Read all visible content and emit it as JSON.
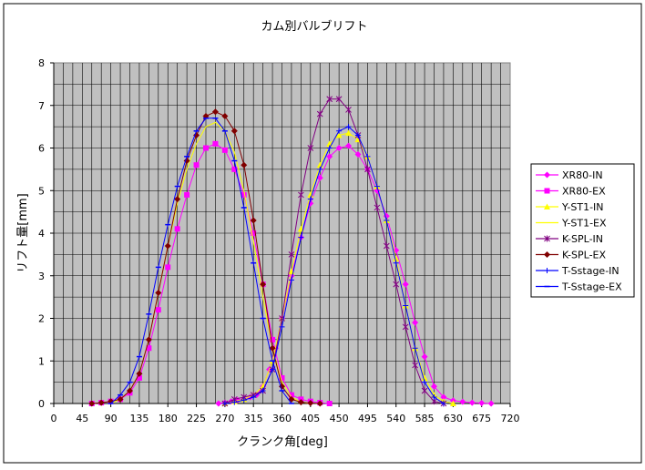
{
  "chart_data": {
    "type": "line",
    "title": "カム別バルブリフト",
    "xlabel": "クランク角[deg]",
    "ylabel": "リフト量[mm]",
    "xlim": [
      0,
      720
    ],
    "ylim": [
      0,
      8
    ],
    "x_ticks": [
      "0",
      "45",
      "90",
      "135",
      "180",
      "225",
      "270",
      "315",
      "360",
      "405",
      "450",
      "495",
      "540",
      "585",
      "630",
      "675",
      "720"
    ],
    "y_ticks": [
      "0",
      "1",
      "2",
      "3",
      "4",
      "5",
      "6",
      "7",
      "8"
    ],
    "grid": true,
    "legend_position": "right",
    "plot_background": "#c0c0c0",
    "series": [
      {
        "name": "XR80-IN",
        "color": "#ff00ff",
        "marker": "diamond",
        "x": [
          260,
          270,
          280,
          290,
          300,
          310,
          320,
          330,
          340,
          350,
          360,
          375,
          390,
          405,
          420,
          435,
          450,
          465,
          480,
          495,
          510,
          525,
          540,
          555,
          570,
          585,
          600,
          615,
          630,
          645,
          660,
          675,
          690
        ],
        "y": [
          0.0,
          0.02,
          0.05,
          0.08,
          0.1,
          0.15,
          0.2,
          0.4,
          0.8,
          1.3,
          2.0,
          3.0,
          3.9,
          4.7,
          5.3,
          5.8,
          6.0,
          6.05,
          5.85,
          5.5,
          5.0,
          4.4,
          3.6,
          2.8,
          1.9,
          1.1,
          0.4,
          0.15,
          0.07,
          0.04,
          0.02,
          0.01,
          0.0
        ]
      },
      {
        "name": "XR80-EX",
        "color": "#ff00ff",
        "marker": "square",
        "x": [
          60,
          75,
          90,
          105,
          120,
          135,
          150,
          165,
          180,
          195,
          210,
          225,
          240,
          255,
          270,
          285,
          300,
          315,
          330,
          345,
          360,
          375,
          390,
          405,
          420,
          435
        ],
        "y": [
          0.0,
          0.02,
          0.05,
          0.1,
          0.25,
          0.6,
          1.3,
          2.2,
          3.2,
          4.1,
          4.9,
          5.6,
          6.0,
          6.1,
          5.95,
          5.5,
          4.9,
          4.0,
          2.8,
          1.5,
          0.6,
          0.2,
          0.1,
          0.05,
          0.02,
          0.0
        ]
      },
      {
        "name": "Y-ST1-IN",
        "color": "#ffff00",
        "marker": "triangle",
        "x": [
          270,
          285,
          300,
          315,
          330,
          345,
          360,
          375,
          390,
          405,
          420,
          435,
          450,
          465,
          480,
          495,
          510,
          525,
          540,
          555,
          570,
          585,
          600,
          615,
          630
        ],
        "y": [
          0.0,
          0.05,
          0.1,
          0.2,
          0.4,
          1.0,
          2.0,
          3.1,
          4.1,
          4.9,
          5.6,
          6.1,
          6.3,
          6.35,
          6.2,
          5.8,
          5.1,
          4.3,
          3.4,
          2.3,
          1.3,
          0.6,
          0.2,
          0.05,
          0.0
        ]
      },
      {
        "name": "Y-ST1-EX",
        "color": "#ffff00",
        "marker": "none",
        "x": [
          90,
          105,
          120,
          135,
          150,
          165,
          180,
          195,
          210,
          225,
          240,
          255,
          270,
          285,
          300,
          315,
          330,
          345,
          360,
          375,
          390,
          405
        ],
        "y": [
          0.0,
          0.1,
          0.3,
          0.7,
          1.5,
          2.6,
          3.7,
          4.7,
          5.5,
          6.1,
          6.5,
          6.6,
          6.4,
          5.9,
          5.0,
          3.8,
          2.5,
          1.3,
          0.5,
          0.15,
          0.03,
          0.0
        ]
      },
      {
        "name": "K-SPL-IN",
        "color": "#800080",
        "marker": "star",
        "x": [
          270,
          285,
          300,
          315,
          330,
          345,
          360,
          375,
          390,
          405,
          420,
          435,
          450,
          465,
          480,
          495,
          510,
          525,
          540,
          555,
          570,
          585,
          600,
          615
        ],
        "y": [
          0.0,
          0.1,
          0.15,
          0.2,
          0.3,
          0.8,
          2.0,
          3.5,
          4.9,
          6.0,
          6.8,
          7.15,
          7.15,
          6.9,
          6.3,
          5.5,
          4.6,
          3.7,
          2.8,
          1.8,
          0.9,
          0.3,
          0.05,
          0.0
        ]
      },
      {
        "name": "K-SPL-EX",
        "color": "#800000",
        "marker": "diamond",
        "x": [
          60,
          75,
          90,
          105,
          120,
          135,
          150,
          165,
          180,
          195,
          210,
          225,
          240,
          255,
          270,
          285,
          300,
          315,
          330,
          345,
          360,
          375,
          390,
          405,
          420
        ],
        "y": [
          0.0,
          0.02,
          0.05,
          0.1,
          0.3,
          0.7,
          1.5,
          2.6,
          3.7,
          4.8,
          5.7,
          6.3,
          6.75,
          6.85,
          6.75,
          6.4,
          5.6,
          4.3,
          2.8,
          1.3,
          0.4,
          0.1,
          0.03,
          0.01,
          0.0
        ]
      },
      {
        "name": "T-Sstage-IN",
        "color": "#0000ff",
        "marker": "plus",
        "x": [
          270,
          285,
          300,
          315,
          330,
          345,
          360,
          375,
          390,
          405,
          420,
          435,
          450,
          465,
          480,
          495,
          510,
          525,
          540,
          555,
          570,
          585,
          600,
          615
        ],
        "y": [
          0.0,
          0.03,
          0.08,
          0.15,
          0.3,
          0.8,
          1.8,
          2.9,
          3.9,
          4.8,
          5.5,
          6.0,
          6.4,
          6.5,
          6.3,
          5.8,
          5.1,
          4.3,
          3.3,
          2.3,
          1.3,
          0.5,
          0.15,
          0.0
        ]
      },
      {
        "name": "T-Sstage-EX",
        "color": "#0000ff",
        "marker": "dash",
        "x": [
          90,
          105,
          120,
          135,
          150,
          165,
          180,
          195,
          210,
          225,
          240,
          255,
          270,
          285,
          300,
          315,
          330,
          345,
          360,
          375
        ],
        "y": [
          0.0,
          0.2,
          0.5,
          1.1,
          2.1,
          3.2,
          4.2,
          5.1,
          5.8,
          6.4,
          6.7,
          6.7,
          6.4,
          5.7,
          4.6,
          3.3,
          2.0,
          1.0,
          0.3,
          0.0
        ]
      }
    ]
  }
}
